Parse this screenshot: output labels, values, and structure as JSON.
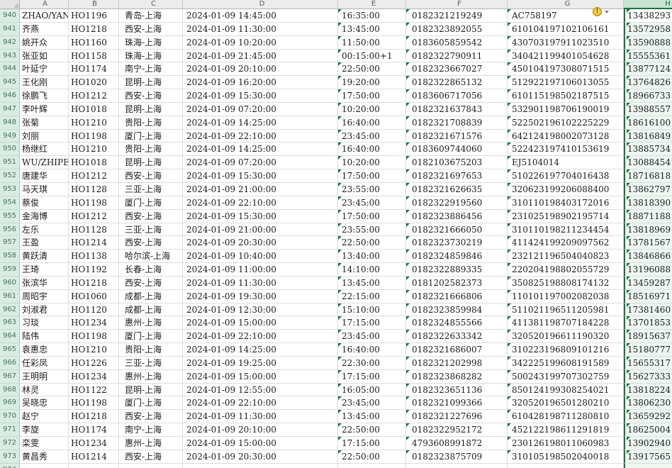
{
  "sheet": {
    "column_headers": [
      "A",
      "B",
      "C",
      "D",
      "E",
      "F",
      "G",
      "H"
    ],
    "selected_column": "H",
    "indicator_triangle_columns": [
      "E",
      "F",
      "G",
      "H"
    ],
    "rows": [
      [
        "940",
        "ZHAO/YAN",
        "HO1196",
        "青岛-上海",
        "2024-01-09 14:45:00",
        "16:35:00",
        "0182321219249",
        "AC758197",
        "13438293"
      ],
      [
        "941",
        "齐燕",
        "HO1218",
        "西安-上海",
        "2024-01-09 11:30:00",
        "13:45:00",
        "0182323892055",
        "610104197102106161",
        "13572958"
      ],
      [
        "942",
        "姚开众",
        "HO1160",
        "珠海-上海",
        "2024-01-09 10:20:00",
        "11:50:00",
        "0183605859542",
        "430703197911023510",
        "13590888"
      ],
      [
        "943",
        "张亚如",
        "HO1158",
        "珠海-上海",
        "2024-01-09 21:45:00",
        "00:15:00+1",
        "0182322790911",
        "340421199401054628",
        "15555361"
      ],
      [
        "944",
        "叶延宁",
        "HO1174",
        "南宁-上海",
        "2024-01-09 20:10:00",
        "22:50:00",
        "0182323667027",
        "450104197308071515",
        "13877124"
      ],
      [
        "945",
        "王化刚",
        "HO1020",
        "昆明-上海",
        "2024-01-09 16:20:00",
        "19:20:00",
        "0182322865132",
        "512922197106013055",
        "13764826"
      ],
      [
        "946",
        "徐鹏飞",
        "HO1212",
        "西安-上海",
        "2024-01-09 15:30:00",
        "17:50:00",
        "0183606717056",
        "610115198502187515",
        "18966733"
      ],
      [
        "947",
        "李叶辉",
        "HO1018",
        "昆明-上海",
        "2024-01-09 07:20:00",
        "10:20:00",
        "0182321637843",
        "532901198706190019",
        "13988557"
      ],
      [
        "948",
        "张菊",
        "HO1210",
        "贵阳-上海",
        "2024-01-09 14:25:00",
        "16:40:00",
        "0182321708839",
        "522502196102225229",
        "18616100"
      ],
      [
        "949",
        "刘丽",
        "HO1198",
        "厦门-上海",
        "2024-01-09 22:10:00",
        "23:45:00",
        "0182321671576",
        "642124198002073128",
        "13816849"
      ],
      [
        "950",
        "杨继红",
        "HO1210",
        "贵阳-上海",
        "2024-01-09 14:25:00",
        "16:40:00",
        "0183609744060",
        "522423197410153619",
        "13885734"
      ],
      [
        "951",
        "WU/ZHIPEN",
        "HO1018",
        "昆明-上海",
        "2024-01-09 07:20:00",
        "10:20:00",
        "0182103675203",
        "EJ5104014",
        "13088454"
      ],
      [
        "952",
        "唐建华",
        "HO1212",
        "西安-上海",
        "2024-01-09 15:30:00",
        "17:50:00",
        "0182321697653",
        "510226197704016438",
        "18716818"
      ],
      [
        "953",
        "马天琪",
        "HO1128",
        "三亚-上海",
        "2024-01-09 21:00:00",
        "23:55:00",
        "0182321626635",
        "320623199206088400",
        "13862797"
      ],
      [
        "954",
        "蔡俊",
        "HO1198",
        "厦门-上海",
        "2024-01-09 22:10:00",
        "23:45:00",
        "0182322919560",
        "310110198403172016",
        "13818390"
      ],
      [
        "955",
        "金海博",
        "HO1212",
        "西安-上海",
        "2024-01-09 15:30:00",
        "17:50:00",
        "0182323886456",
        "231025198902195714",
        "18871188"
      ],
      [
        "956",
        "左乐",
        "HO1128",
        "三亚-上海",
        "2024-01-09 21:00:00",
        "23:55:00",
        "0182321666050",
        "310110198211234454",
        "13818969"
      ],
      [
        "957",
        "王盈",
        "HO1214",
        "西安-上海",
        "2024-01-09 20:30:00",
        "22:50:00",
        "0182323730219",
        "411424199209097562",
        "13781567"
      ],
      [
        "958",
        "黄跃清",
        "HO1138",
        "哈尔滨-上海",
        "2024-01-09 10:40:00",
        "13:40:00",
        "0182324859846",
        "232121196504040823",
        "13846866"
      ],
      [
        "959",
        "王琦",
        "HO1192",
        "长春-上海",
        "2024-01-09 11:00:00",
        "14:10:00",
        "0182322889335",
        "220204198802055729",
        "13196088"
      ],
      [
        "960",
        "张滨华",
        "HO1218",
        "西安-上海",
        "2024-01-09 11:30:00",
        "13:45:00",
        "0181202582373",
        "350825198808174132",
        "13459287"
      ],
      [
        "961",
        "周昭宇",
        "HO1060",
        "成都-上海",
        "2024-01-09 19:30:00",
        "22:15:00",
        "0182321666806",
        "110101197002082038",
        "18516971"
      ],
      [
        "962",
        "刘淑君",
        "HO1120",
        "成都-上海",
        "2024-01-09 12:30:00",
        "15:10:00",
        "0182323859984",
        "511021196511205981",
        "17381460"
      ],
      [
        "963",
        "习琰",
        "HO1234",
        "惠州-上海",
        "2024-01-09 15:00:00",
        "17:15:00",
        "0182324855566",
        "411381198707184228",
        "13701853"
      ],
      [
        "964",
        "陆伟",
        "HO1198",
        "厦门-上海",
        "2024-01-09 22:10:00",
        "23:45:00",
        "0182322633342",
        "320520196611190320",
        "18915637"
      ],
      [
        "965",
        "袁惠忠",
        "HO1210",
        "贵阳-上海",
        "2024-01-09 14:25:00",
        "16:40:00",
        "0182321686007",
        "310223196809101216",
        "15180777"
      ],
      [
        "966",
        "任彩凤",
        "HO1226",
        "三亚-上海",
        "2024-01-09 19:25:00",
        "22:30:00",
        "0182321202998",
        "342225199608191589",
        "15655317"
      ],
      [
        "967",
        "王明明",
        "HO1234",
        "惠州-上海",
        "2024-01-09 15:00:00",
        "17:15:00",
        "0182323868282",
        "500243199707302759",
        "15627333"
      ],
      [
        "968",
        "林灵",
        "HO1122",
        "昆明-上海",
        "2024-01-09 12:55:00",
        "16:05:00",
        "0182323651136",
        "850124199308254021",
        "13818224"
      ],
      [
        "969",
        "吴晓忠",
        "HO1198",
        "厦门-上海",
        "2024-01-09 22:10:00",
        "23:45:00",
        "0182321099366",
        "320520196501280210",
        "13806230"
      ],
      [
        "970",
        "赵宁",
        "HO1218",
        "西安-上海",
        "2024-01-09 11:30:00",
        "13:45:00",
        "0182321227696",
        "610428198711280810",
        "13659292"
      ],
      [
        "971",
        "李旋",
        "HO1174",
        "南宁-上海",
        "2024-01-09 20:10:00",
        "22:50:00",
        "0182322952172",
        "452122198611291819",
        "18625004"
      ],
      [
        "972",
        "栾雯",
        "HO1234",
        "惠州-上海",
        "2024-01-09 15:00:00",
        "17:15:00",
        "4793608991872",
        "230126198011060983",
        "13902940"
      ],
      [
        "973",
        "黄昌秀",
        "HO1214",
        "西安-上海",
        "2024-01-09 20:30:00",
        "22:50:00",
        "0182323875709",
        "310105198502040018",
        "13917565"
      ]
    ],
    "partial_row": [
      "974",
      "",
      "",
      "",
      "",
      "",
      "",
      "",
      ""
    ],
    "error_button": {
      "glyph": "!",
      "row": "940",
      "column": "G"
    }
  },
  "colors": {
    "selection_green": "#1e7145",
    "row_header_bg": "#d9ece2",
    "column_header_bg": "#ececec",
    "selected_header_bg": "#c7e3d3",
    "warning_yellow": "#f1c232"
  }
}
